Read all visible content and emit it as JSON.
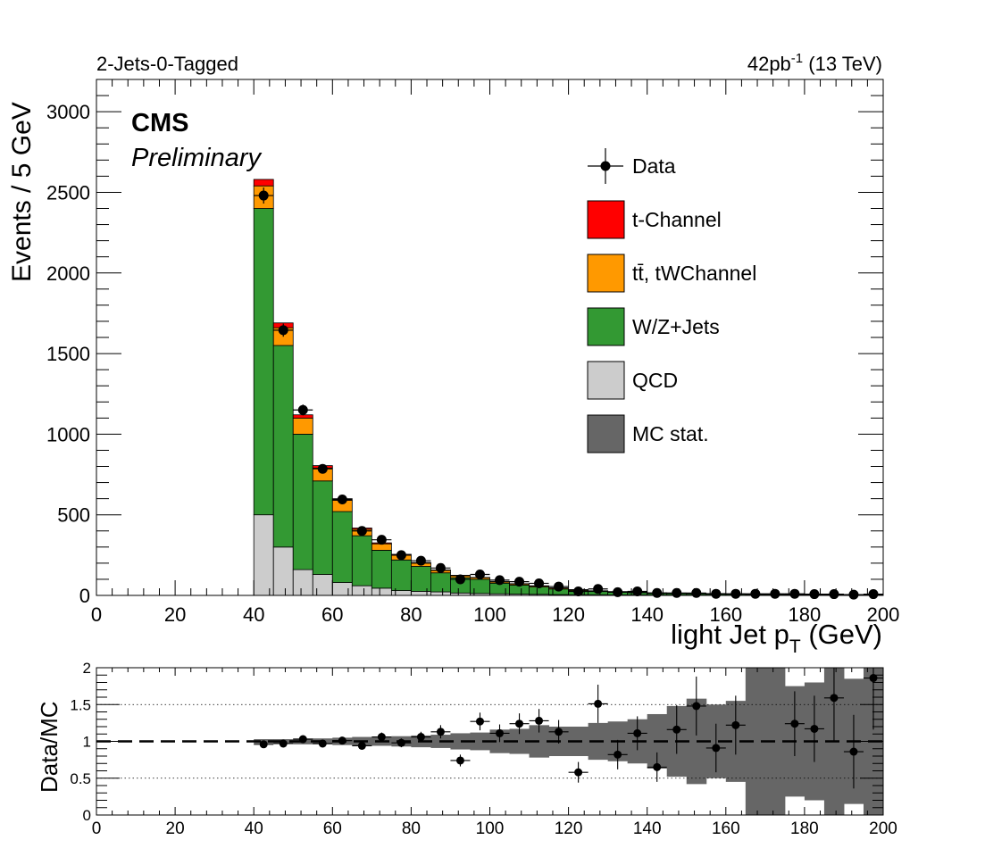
{
  "header": {
    "category": "2-Jets-0-Tagged",
    "lumi": "42pb",
    "lumi_sup": "-1",
    "energy": " (13 TeV)",
    "experiment": "CMS",
    "status": "Preliminary"
  },
  "colors": {
    "tchannel": "#ff0000",
    "ttbar": "#ff9900",
    "wzjets": "#339933",
    "qcd": "#cccccc",
    "mcstat": "#666666",
    "data": "#000000"
  },
  "legend": {
    "placement": "upper-right",
    "items": [
      {
        "key": "data",
        "label": "Data"
      },
      {
        "key": "tchannel",
        "label": "t-Channel"
      },
      {
        "key": "ttbar",
        "label": "tt̄, tWChannel"
      },
      {
        "key": "wzjets",
        "label": "W/Z+Jets"
      },
      {
        "key": "qcd",
        "label": "QCD"
      },
      {
        "key": "mcstat",
        "label": "MC stat."
      }
    ]
  },
  "chart_data": [
    {
      "type": "bar",
      "subtype": "stacked-histogram",
      "xlabel": "light Jet p",
      "xlabel_sub": "T",
      "xlabel_unit": " (GeV)",
      "ylabel": "Events / 5 GeV",
      "xlim": [
        0,
        200
      ],
      "ylim": [
        0,
        3200
      ],
      "xticks": [
        "0",
        "20",
        "40",
        "60",
        "80",
        "100",
        "120",
        "140",
        "160",
        "180",
        "200"
      ],
      "yticks": [
        "0",
        "500",
        "1000",
        "1500",
        "2000",
        "2500",
        "3000"
      ],
      "bin_width": 5,
      "bin_low_edges": [
        40,
        45,
        50,
        55,
        60,
        65,
        70,
        75,
        80,
        85,
        90,
        95,
        100,
        105,
        110,
        115,
        120,
        125,
        130,
        135,
        140,
        145,
        150,
        155,
        160,
        165,
        170,
        175,
        180,
        185,
        190,
        195
      ],
      "series": [
        {
          "name": "QCD",
          "key": "qcd",
          "values": [
            500,
            300,
            160,
            130,
            80,
            60,
            45,
            30,
            25,
            22,
            15,
            12,
            10,
            8,
            7,
            5,
            4,
            4,
            3,
            3,
            2,
            2,
            2,
            2,
            1,
            1,
            1,
            1,
            1,
            1,
            1,
            1
          ]
        },
        {
          "name": "W/Z+Jets",
          "key": "wzjets",
          "values": [
            1900,
            1250,
            840,
            580,
            440,
            310,
            235,
            190,
            155,
            118,
            95,
            88,
            66,
            56,
            45,
            35,
            26,
            20,
            16,
            14,
            10,
            9,
            8,
            7,
            6,
            5,
            5,
            4,
            4,
            3,
            3,
            3
          ]
        },
        {
          "name": "tt̄, tWChannel",
          "key": "ttbar",
          "values": [
            140,
            110,
            100,
            80,
            70,
            40,
            40,
            30,
            20,
            15,
            12,
            10,
            8,
            7,
            6,
            6,
            5,
            4,
            4,
            3,
            3,
            3,
            2,
            2,
            2,
            2,
            2,
            1,
            1,
            1,
            1,
            1
          ]
        },
        {
          "name": "t-Channel",
          "key": "tchannel",
          "values": [
            40,
            30,
            20,
            15,
            10,
            8,
            6,
            5,
            4,
            3,
            3,
            2,
            2,
            2,
            2,
            1,
            1,
            1,
            1,
            1,
            1,
            1,
            1,
            1,
            1,
            1,
            0,
            0,
            0,
            0,
            0,
            0
          ]
        }
      ],
      "data": {
        "name": "Data",
        "values": [
          2480,
          1645,
          1150,
          785,
          595,
          400,
          345,
          250,
          215,
          170,
          100,
          130,
          95,
          85,
          75,
          55,
          25,
          40,
          20,
          25,
          15,
          15,
          15,
          10,
          10,
          10,
          10,
          10,
          8,
          8,
          5,
          8
        ]
      }
    },
    {
      "type": "scatter",
      "subtype": "ratio",
      "ylabel": "Data/MC",
      "xlim": [
        0,
        200
      ],
      "ylim": [
        0,
        2
      ],
      "xticks": [
        "0",
        "20",
        "40",
        "60",
        "80",
        "100",
        "120",
        "140",
        "160",
        "180",
        "200"
      ],
      "yticks": [
        "0",
        "0.5",
        "1",
        "1.5",
        "2"
      ],
      "reference_line": 1,
      "x": [
        42.5,
        47.5,
        52.5,
        57.5,
        62.5,
        67.5,
        72.5,
        77.5,
        82.5,
        87.5,
        92.5,
        97.5,
        102.5,
        107.5,
        112.5,
        117.5,
        122.5,
        127.5,
        132.5,
        137.5,
        142.5,
        147.5,
        152.5,
        157.5,
        162.5,
        167.5,
        172.5,
        177.5,
        182.5,
        187.5,
        192.5,
        197.5
      ],
      "values": [
        0.96,
        0.97,
        1.03,
        0.97,
        1.01,
        0.94,
        1.06,
        0.98,
        1.06,
        1.13,
        0.74,
        1.27,
        1.11,
        1.24,
        1.28,
        1.13,
        0.58,
        1.51,
        0.82,
        1.11,
        0.65,
        1.16,
        1.48,
        0.91,
        1.22,
        null,
        null,
        1.24,
        1.17,
        1.59,
        0.86,
        1.86
      ],
      "errors": [
        0.02,
        0.03,
        0.03,
        0.04,
        0.04,
        0.05,
        0.06,
        0.06,
        0.07,
        0.09,
        0.08,
        0.12,
        0.12,
        0.14,
        0.16,
        0.16,
        0.14,
        0.26,
        0.2,
        0.23,
        0.2,
        0.33,
        0.4,
        0.33,
        0.4,
        null,
        null,
        0.44,
        0.45,
        0.6,
        0.5,
        0.7
      ],
      "mc_stat_uncertainty": [
        0.03,
        0.03,
        0.04,
        0.04,
        0.05,
        0.06,
        0.06,
        0.07,
        0.08,
        0.09,
        0.11,
        0.12,
        0.16,
        0.17,
        0.22,
        0.2,
        0.2,
        0.25,
        0.27,
        0.3,
        0.37,
        0.48,
        0.58,
        0.5,
        0.55,
        1.0,
        1.0,
        0.75,
        0.8,
        1.0,
        0.85,
        1.0
      ]
    }
  ]
}
